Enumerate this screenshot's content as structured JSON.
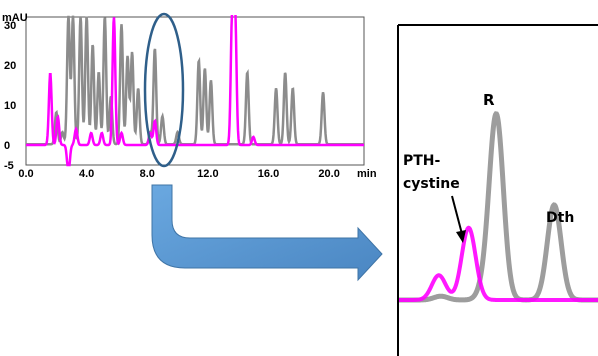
{
  "chart_data": [
    {
      "type": "line",
      "title": "",
      "ylabel": "mAU",
      "xlabel": "min",
      "xlim": [
        0,
        22.3
      ],
      "ylim": [
        -5,
        32
      ],
      "x_ticks": [
        "0.0",
        "4.0",
        "8.0",
        "12.0",
        "16.0",
        "20.0"
      ],
      "y_ticks": [
        "30",
        "20",
        "10",
        "0",
        "-5"
      ],
      "series": [
        {
          "color": "#8c8c8c",
          "baseline": 0.2,
          "peaks": [
            {
              "x": 2.0,
              "y": 8
            },
            {
              "x": 2.4,
              "y": 3
            },
            {
              "x": 2.8,
              "y": 32
            },
            {
              "x": 3.1,
              "y": 32
            },
            {
              "x": 3.6,
              "y": 32
            },
            {
              "x": 4.0,
              "y": 32
            },
            {
              "x": 4.4,
              "y": 25
            },
            {
              "x": 4.8,
              "y": 18
            },
            {
              "x": 5.2,
              "y": 32
            },
            {
              "x": 5.6,
              "y": 12
            },
            {
              "x": 6.3,
              "y": 30
            },
            {
              "x": 6.7,
              "y": 22
            },
            {
              "x": 7.0,
              "y": 23
            },
            {
              "x": 7.4,
              "y": 14
            },
            {
              "x": 8.2,
              "y": 3
            },
            {
              "x": 8.5,
              "y": 24
            },
            {
              "x": 9.0,
              "y": 7
            },
            {
              "x": 10.0,
              "y": 3
            },
            {
              "x": 11.4,
              "y": 21
            },
            {
              "x": 11.8,
              "y": 19
            },
            {
              "x": 12.2,
              "y": 16
            },
            {
              "x": 14.6,
              "y": 18
            },
            {
              "x": 16.5,
              "y": 14
            },
            {
              "x": 17.1,
              "y": 18
            },
            {
              "x": 17.6,
              "y": 14
            },
            {
              "x": 19.6,
              "y": 13
            }
          ]
        },
        {
          "color": "#ff00ff",
          "baseline": 0,
          "peaks": [
            {
              "x": 1.6,
              "y": 18
            },
            {
              "x": 2.1,
              "y": 7
            },
            {
              "x": 2.8,
              "y": -7
            },
            {
              "x": 3.3,
              "y": 4
            },
            {
              "x": 4.3,
              "y": 3
            },
            {
              "x": 5.0,
              "y": 3
            },
            {
              "x": 5.8,
              "y": 32
            },
            {
              "x": 6.3,
              "y": 3
            },
            {
              "x": 8.2,
              "y": 3
            },
            {
              "x": 8.5,
              "y": 6
            },
            {
              "x": 13.6,
              "y": 32
            },
            {
              "x": 13.8,
              "y": 32
            },
            {
              "x": 15.0,
              "y": 2
            }
          ]
        }
      ]
    },
    {
      "type": "line",
      "title": "",
      "note": "zoomed inset of circled region",
      "series": [
        {
          "color": "#8c8c8c",
          "peaks": [
            {
              "x": 0.21,
              "y": 0.02
            },
            {
              "x": 0.44,
              "y": 0.08
            },
            {
              "x": 0.49,
              "y": 0.95
            },
            {
              "x": 0.78,
              "y": 0.5
            }
          ]
        },
        {
          "color": "#ff00ff",
          "peaks": [
            {
              "x": 0.2,
              "y": 0.13
            },
            {
              "x": 0.35,
              "y": 0.38
            }
          ]
        }
      ]
    }
  ],
  "inset": {
    "label_r": "R",
    "label_dth": "Dth",
    "label_pth_line1": "PTH-",
    "label_pth_line2": "cystine"
  },
  "colors": {
    "highlight_ellipse": "#2f5f8a",
    "arrow": "#5b9bd5",
    "gray_trace": "#8c8c8c",
    "magenta_trace": "#ff00ff"
  }
}
